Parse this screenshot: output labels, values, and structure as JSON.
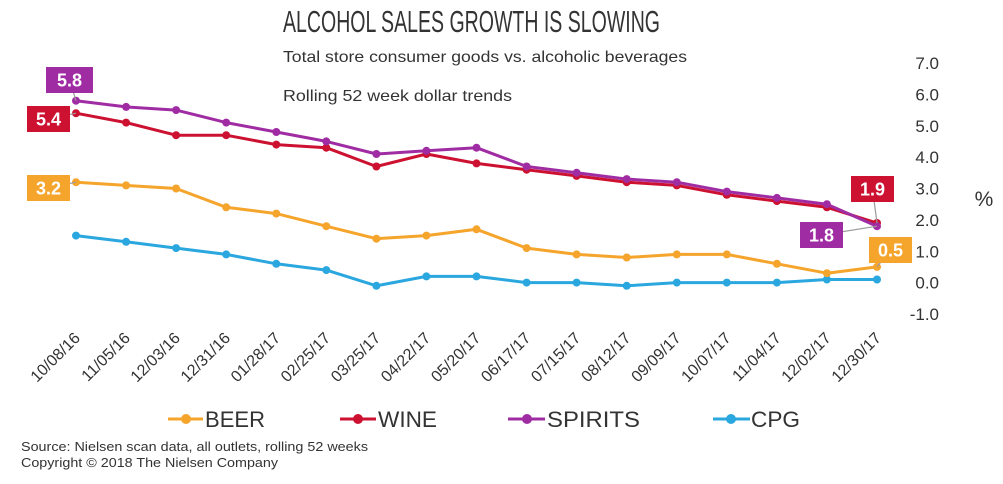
{
  "colors": {
    "background": "#ffffff",
    "text": "#333333",
    "leader_line": "#9b9b9b",
    "data_label_text": "#ffffff"
  },
  "chart_data": {
    "type": "line",
    "title": "ALCOHOL SALES GROWTH IS SLOWING",
    "subtitle": "Total store consumer goods vs. alcoholic beverages",
    "subtitle_2": "Rolling 52 week dollar trends",
    "xlabel": "",
    "ylabel": "%",
    "ylim": [
      -1,
      7
    ],
    "yticks": [
      7,
      6,
      5,
      4,
      3,
      2,
      1,
      0,
      -1
    ],
    "grid": false,
    "legend_position": "bottom",
    "categories": [
      "10/08/16",
      "11/05/16",
      "12/03/16",
      "12/31/16",
      "01/28/17",
      "02/25/17",
      "03/25/17",
      "04/22/17",
      "05/20/17",
      "06/17/17",
      "07/15/17",
      "08/12/17",
      "09/09/17",
      "10/07/17",
      "11/04/17",
      "12/02/17",
      "12/30/17"
    ],
    "series": [
      {
        "name": "BEER",
        "color": "#f5a42c",
        "values": [
          3.2,
          3.1,
          3.0,
          2.4,
          2.2,
          1.8,
          1.4,
          1.5,
          1.7,
          1.1,
          0.9,
          0.8,
          0.9,
          0.9,
          0.6,
          0.3,
          0.5
        ]
      },
      {
        "name": "WINE",
        "color": "#cc1131",
        "values": [
          5.4,
          5.1,
          4.7,
          4.7,
          4.4,
          4.3,
          3.7,
          4.1,
          3.8,
          3.6,
          3.4,
          3.2,
          3.1,
          2.8,
          2.6,
          2.4,
          1.9
        ]
      },
      {
        "name": "SPIRITS",
        "color": "#a02ca4",
        "values": [
          5.8,
          5.6,
          5.5,
          5.1,
          4.8,
          4.5,
          4.1,
          4.2,
          4.3,
          3.7,
          3.5,
          3.3,
          3.2,
          2.9,
          2.7,
          2.5,
          1.8
        ]
      },
      {
        "name": "CPG",
        "color": "#2ba7df",
        "values": [
          1.5,
          1.3,
          1.1,
          0.9,
          0.6,
          0.4,
          -0.1,
          0.2,
          0.2,
          0.0,
          0.0,
          -0.1,
          0.0,
          0.0,
          0.0,
          0.1,
          0.1
        ]
      }
    ],
    "data_labels": [
      {
        "series": "SPIRITS",
        "category": "10/08/16",
        "text": "5.8"
      },
      {
        "series": "WINE",
        "category": "10/08/16",
        "text": "5.4"
      },
      {
        "series": "BEER",
        "category": "10/08/16",
        "text": "3.2"
      },
      {
        "series": "WINE",
        "category": "12/30/17",
        "text": "1.9"
      },
      {
        "series": "SPIRITS",
        "category": "12/30/17",
        "text": "1.8"
      },
      {
        "series": "BEER",
        "category": "12/30/17",
        "text": "0.5"
      }
    ]
  },
  "footer": {
    "source": "Source: Nielsen scan data, all outlets, rolling 52 weeks",
    "copyright": "Copyright © 2018 The Nielsen Company"
  }
}
